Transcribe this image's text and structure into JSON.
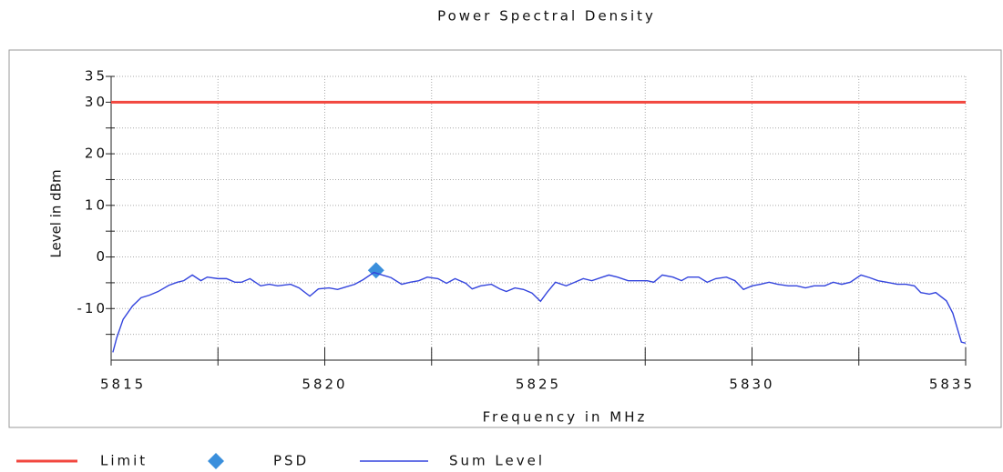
{
  "chart_data": {
    "type": "line",
    "title": "Power Spectral Density",
    "xlabel": "Frequency in MHz",
    "ylabel": "Level in dBm",
    "xlim": [
      5815,
      5835
    ],
    "xticks": [
      5815,
      5820,
      5825,
      5830,
      5835
    ],
    "xminor": [
      5817.5,
      5822.5,
      5827.5,
      5832.5
    ],
    "ylim": [
      -20,
      35
    ],
    "yticks": [
      35,
      30,
      20,
      10,
      0,
      -10
    ],
    "yminor": [
      25,
      15,
      5,
      -5,
      -15
    ],
    "grid": true,
    "legend": "bottom",
    "series": [
      {
        "name": "Limit",
        "color": "#f2473f",
        "marker": "none",
        "x": [
          5815,
          5835
        ],
        "values": [
          30,
          30
        ]
      },
      {
        "name": "PSD",
        "color": "#3a8fdc",
        "marker": "diamond",
        "x": [
          5821.2
        ],
        "values": [
          -2.6
        ]
      },
      {
        "name": "Sum Level",
        "color": "#3344dd",
        "marker": "none",
        "x": [
          5815.04,
          5815.13,
          5815.28,
          5815.5,
          5815.7,
          5815.9,
          5816.1,
          5816.35,
          5816.55,
          5816.7,
          5816.9,
          5817.1,
          5817.25,
          5817.5,
          5817.7,
          5817.9,
          5818.05,
          5818.25,
          5818.5,
          5818.7,
          5818.9,
          5819.2,
          5819.4,
          5819.65,
          5819.85,
          5820.1,
          5820.3,
          5820.5,
          5820.7,
          5820.9,
          5821.15,
          5821.35,
          5821.55,
          5821.8,
          5822.0,
          5822.2,
          5822.4,
          5822.65,
          5822.85,
          5823.05,
          5823.3,
          5823.45,
          5823.65,
          5823.9,
          5824.1,
          5824.25,
          5824.45,
          5824.65,
          5824.85,
          5825.05,
          5825.2,
          5825.4,
          5825.65,
          5825.85,
          5826.05,
          5826.25,
          5826.5,
          5826.65,
          5826.85,
          5827.1,
          5827.3,
          5827.55,
          5827.7,
          5827.9,
          5828.15,
          5828.35,
          5828.5,
          5828.75,
          5828.95,
          5829.15,
          5829.4,
          5829.6,
          5829.8,
          5830.0,
          5830.2,
          5830.4,
          5830.6,
          5830.85,
          5831.05,
          5831.25,
          5831.45,
          5831.7,
          5831.9,
          5832.1,
          5832.3,
          5832.55,
          5832.75,
          5832.95,
          5833.15,
          5833.4,
          5833.6,
          5833.8,
          5833.95,
          5834.15,
          5834.3,
          5834.55,
          5834.7,
          5834.9,
          5835
        ],
        "values": [
          -18.5,
          -15.7,
          -12.1,
          -9.5,
          -7.9,
          -7.4,
          -6.7,
          -5.5,
          -4.9,
          -4.6,
          -3.5,
          -4.6,
          -3.9,
          -4.2,
          -4.2,
          -4.9,
          -4.9,
          -4.2,
          -5.6,
          -5.3,
          -5.6,
          -5.3,
          -6.0,
          -7.6,
          -6.2,
          -6.0,
          -6.3,
          -5.8,
          -5.3,
          -4.4,
          -3.0,
          -3.5,
          -4.0,
          -5.3,
          -4.9,
          -4.6,
          -3.9,
          -4.2,
          -5.1,
          -4.2,
          -5.1,
          -6.2,
          -5.6,
          -5.3,
          -6.2,
          -6.7,
          -6.0,
          -6.3,
          -7.0,
          -8.6,
          -6.9,
          -4.9,
          -5.6,
          -4.9,
          -4.2,
          -4.6,
          -3.9,
          -3.5,
          -3.9,
          -4.6,
          -4.6,
          -4.6,
          -4.9,
          -3.5,
          -3.9,
          -4.6,
          -3.9,
          -3.9,
          -4.9,
          -4.2,
          -3.9,
          -4.6,
          -6.3,
          -5.6,
          -5.3,
          -4.9,
          -5.3,
          -5.6,
          -5.6,
          -6.0,
          -5.6,
          -5.6,
          -4.9,
          -5.3,
          -4.9,
          -3.5,
          -4.0,
          -4.6,
          -4.9,
          -5.3,
          -5.3,
          -5.6,
          -6.9,
          -7.2,
          -6.9,
          -8.5,
          -10.9,
          -16.5,
          -16.7
        ]
      }
    ]
  }
}
